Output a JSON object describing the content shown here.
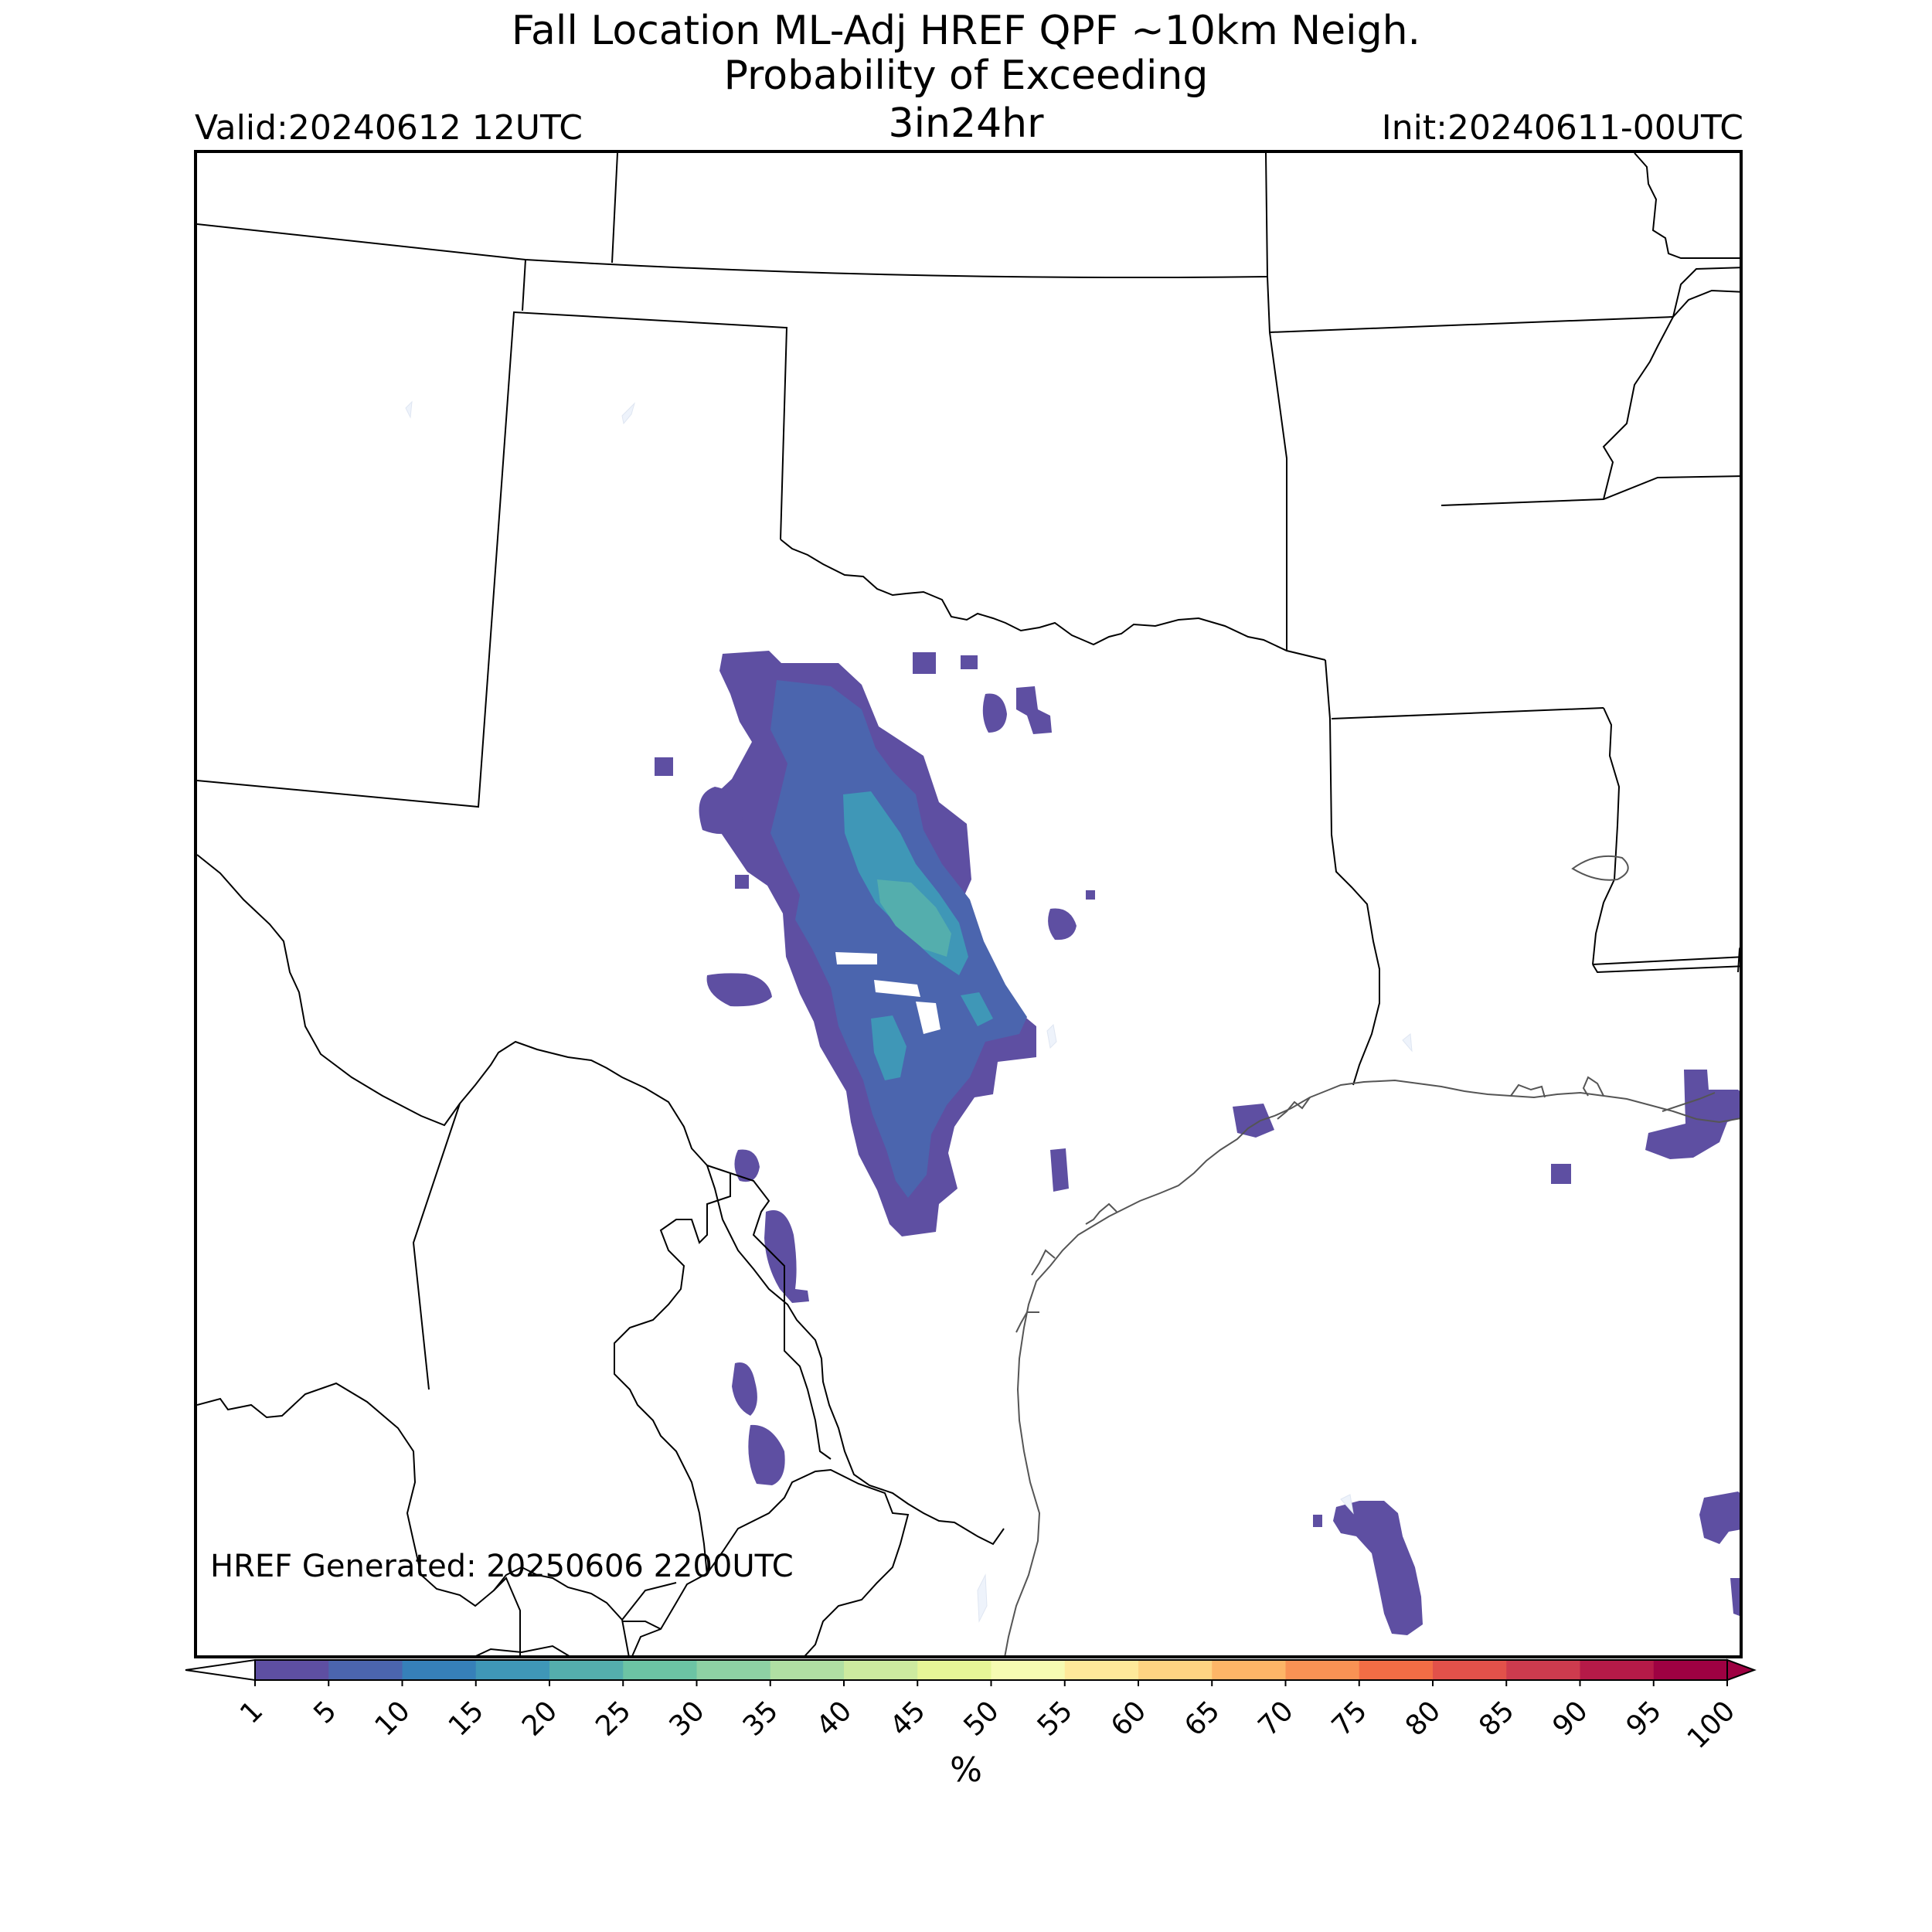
{
  "title": {
    "line1": "Fall Location ML-Adj HREF QPF ~10km Neigh.",
    "line2": "Probability of Exceeding",
    "line3": "3in24hr"
  },
  "valid_label": "Valid:20240612 12UTC",
  "init_label": "Init:20240611-00UTC",
  "generated_label": "HREF Generated: 20250606 2200UTC",
  "colorbar": {
    "unit": "%",
    "ticks": [
      "1",
      "5",
      "10",
      "15",
      "20",
      "25",
      "30",
      "35",
      "40",
      "45",
      "50",
      "55",
      "60",
      "65",
      "70",
      "75",
      "80",
      "85",
      "90",
      "95",
      "100"
    ],
    "colors": [
      "#5e4fa2",
      "#4b65ae",
      "#3680b9",
      "#3f97b7",
      "#54aead",
      "#6cc4a4",
      "#8ed1a4",
      "#b0dfa3",
      "#cdea9f",
      "#e6f597",
      "#f6fbb2",
      "#fee99a",
      "#fed482",
      "#fdb567",
      "#f99254",
      "#f36d45",
      "#e2514a",
      "#cd3b4e",
      "#b51a48",
      "#9e0142"
    ],
    "extend_min_color": "#ffffff",
    "extend_max_color": "#9e0142"
  },
  "map": {
    "region": "Texas / Southern Plains",
    "basemap_colors": {
      "state_borders": "#000000",
      "coastline": "#666666",
      "lakes": "#eef3fb"
    },
    "probability_colors": {
      "low": "#5e4fa2",
      "mid": "#4b65ae",
      "higher": "#3f97b7",
      "peak": "#54aead"
    }
  }
}
